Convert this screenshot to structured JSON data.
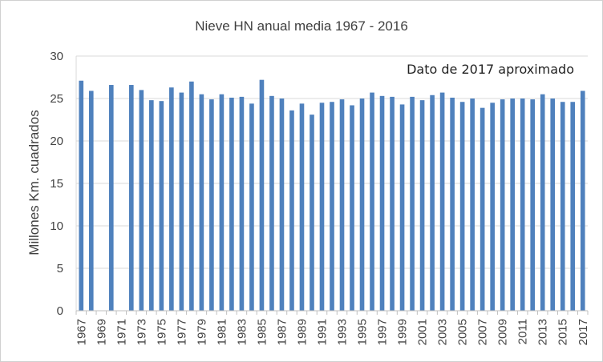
{
  "chart_data": {
    "type": "bar",
    "title": "Nieve HN anual media 1967 - 2016",
    "ylabel": "Millones Km. cuadrados",
    "xlabel": "",
    "annotation": "Dato de 2017 aproximado",
    "ylim": [
      0,
      30
    ],
    "yticks": [
      0,
      5,
      10,
      15,
      20,
      25,
      30
    ],
    "grid": "horizontal",
    "legend": "none",
    "bar_color": "#4F81BD",
    "categories": [
      1967,
      1968,
      1969,
      1970,
      1971,
      1972,
      1973,
      1974,
      1975,
      1976,
      1977,
      1978,
      1979,
      1980,
      1981,
      1982,
      1983,
      1984,
      1985,
      1986,
      1987,
      1988,
      1989,
      1990,
      1991,
      1992,
      1993,
      1994,
      1995,
      1996,
      1997,
      1998,
      1999,
      2000,
      2001,
      2002,
      2003,
      2004,
      2005,
      2006,
      2007,
      2008,
      2009,
      2010,
      2011,
      2012,
      2013,
      2014,
      2015,
      2016,
      2017
    ],
    "xtick_labels": [
      "1967",
      "1969",
      "1971",
      "1973",
      "1975",
      "1977",
      "1979",
      "1981",
      "1983",
      "1985",
      "1987",
      "1989",
      "1991",
      "1993",
      "1995",
      "1997",
      "1999",
      "2001",
      "2003",
      "2005",
      "2007",
      "2009",
      "2011",
      "2013",
      "2015",
      "2017"
    ],
    "values": [
      27.1,
      25.9,
      null,
      26.6,
      null,
      26.6,
      26.0,
      24.8,
      24.7,
      26.3,
      25.7,
      27.0,
      25.5,
      24.9,
      25.5,
      25.1,
      25.2,
      24.4,
      27.2,
      25.3,
      25.0,
      23.6,
      24.4,
      23.1,
      24.5,
      24.6,
      24.9,
      24.2,
      25.0,
      25.7,
      25.3,
      25.2,
      24.3,
      25.2,
      24.8,
      25.4,
      25.7,
      25.1,
      24.6,
      25.0,
      23.9,
      24.5,
      24.9,
      25.0,
      25.0,
      24.9,
      25.5,
      25.0,
      24.6,
      24.6,
      25.9
    ]
  }
}
